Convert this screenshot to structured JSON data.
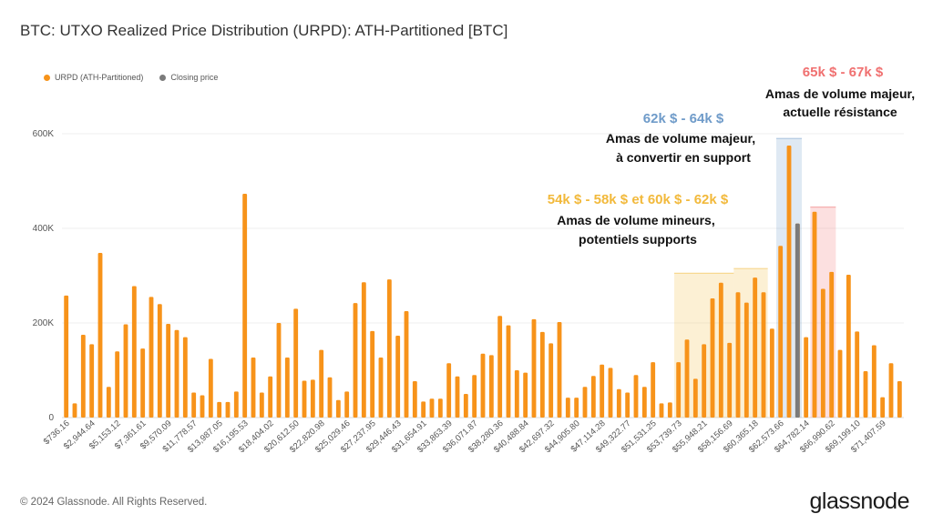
{
  "title": "BTC: UTXO Realized Price Distribution (URPD): ATH-Partitioned [BTC]",
  "footer": "© 2024 Glassnode. All Rights Reserved.",
  "brand": "glassnode",
  "colors": {
    "bar": "#f7931a",
    "closing": "#7b7b7b",
    "blue": "#6f9bc9",
    "yellow": "#f2b93b",
    "red": "#f07070"
  },
  "legend": [
    {
      "label": "URPD (ATH-Partitioned)",
      "color": "#f7931a"
    },
    {
      "label": "Closing price",
      "color": "#7b7b7b"
    }
  ],
  "annotations": [
    {
      "heading": "65k $ - 67k $",
      "lines": [
        "Amas de volume majeur,",
        "actuelle résistance"
      ],
      "color": "#f07070"
    },
    {
      "heading": "62k $ - 64k $",
      "lines": [
        "Amas de volume majeur,",
        "à convertir en support"
      ],
      "color": "#6f9bc9"
    },
    {
      "heading": "54k $ - 58k $ et 60k $ - 62k $",
      "lines": [
        "Amas de volume mineurs,",
        "potentiels supports"
      ],
      "color": "#f2b93b"
    }
  ],
  "chart_data": {
    "type": "bar",
    "ylim": [
      0,
      650000
    ],
    "yticks": [
      {
        "value": 0,
        "label": "0"
      },
      {
        "value": 200000,
        "label": "200K"
      },
      {
        "value": 400000,
        "label": "400K"
      },
      {
        "value": 600000,
        "label": "600K"
      }
    ],
    "xtick_labels": [
      "$736.16",
      "$2,944.64",
      "$5,153.12",
      "$7,361.61",
      "$9,570.09",
      "$11,778.57",
      "$13,987.05",
      "$16,195.53",
      "$18,404.02",
      "$20,612.50",
      "$22,820.98",
      "$25,029.46",
      "$27,237.95",
      "$29,446.43",
      "$31,654.91",
      "$33,863.39",
      "$36,071.87",
      "$38,280.36",
      "$40,488.84",
      "$42,697.32",
      "$44,905.80",
      "$47,114.28",
      "$49,322.77",
      "$51,531.25",
      "$53,739.73",
      "$55,948.21",
      "$58,156.69",
      "$60,365.18",
      "$62,573.66",
      "$64,782.14",
      "$66,990.62",
      "$69,199.10",
      "$71,407.59"
    ],
    "series": [
      {
        "name": "URPD (ATH-Partitioned)",
        "values": [
          258000,
          30000,
          175000,
          155000,
          348000,
          65000,
          140000,
          197000,
          278000,
          146000,
          255000,
          240000,
          198000,
          185000,
          170000,
          53000,
          47000,
          124000,
          33000,
          33000,
          55000,
          473000,
          127000,
          53000,
          87000,
          200000,
          127000,
          230000,
          78000,
          80000,
          143000,
          85000,
          37000,
          55000,
          242000,
          286000,
          183000,
          127000,
          292000,
          173000,
          225000,
          77000,
          34000,
          40000,
          40000,
          115000,
          87000,
          50000,
          90000,
          135000,
          132000,
          215000,
          195000,
          100000,
          95000,
          208000,
          181000,
          157000,
          202000,
          42000,
          42000,
          65000,
          88000,
          112000,
          105000,
          60000,
          53000,
          90000,
          65000,
          117000,
          30000,
          32000,
          117000,
          165000,
          82000,
          155000,
          252000,
          285000,
          158000,
          265000,
          243000,
          296000,
          265000,
          188000,
          363000,
          575000,
          410000,
          170000,
          435000,
          272000,
          308000,
          143000,
          302000,
          182000,
          98000,
          153000,
          43000,
          115000,
          77000
        ]
      },
      {
        "name": "Closing price",
        "index": 86,
        "value": 410000
      }
    ],
    "highlight_ranges": [
      {
        "label": "54k $ - 58k $",
        "from": 72,
        "to": 78,
        "top": 305000,
        "color": "#f2b93b"
      },
      {
        "label": "60k $ - 62k $",
        "from": 79,
        "to": 82,
        "top": 315000,
        "color": "#f2b93b"
      },
      {
        "label": "62k $ - 64k $",
        "from": 84,
        "to": 86,
        "top": 590000,
        "color": "#6f9bc9"
      },
      {
        "label": "65k $ - 67k $",
        "from": 88,
        "to": 90,
        "top": 445000,
        "color": "#f07070"
      }
    ]
  }
}
